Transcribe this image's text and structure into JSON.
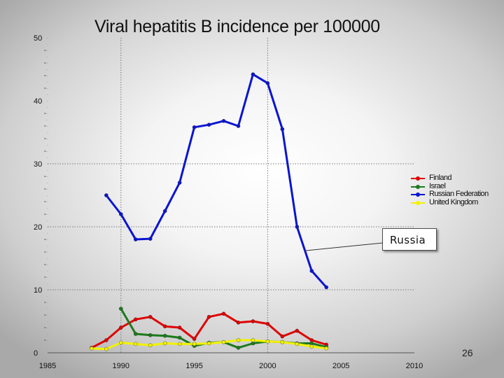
{
  "chart_data": {
    "type": "line",
    "title": "Viral hepatitis B incidence per 100000",
    "xlim": [
      1985,
      2010
    ],
    "ylim": [
      0,
      50
    ],
    "x_ticks": [
      1985,
      1990,
      1995,
      2000,
      2005,
      2010
    ],
    "y_ticks": [
      0,
      10,
      20,
      30,
      40,
      50
    ],
    "grid": {
      "vertical_dashed_at": [
        1990,
        2000
      ],
      "horizontal_dashed_at": [
        10,
        20,
        30
      ]
    },
    "legend_position": "right",
    "series": [
      {
        "name": "Finland",
        "color": "#e00000",
        "x": [
          1988,
          1989,
          1990,
          1991,
          1992,
          1993,
          1994,
          1995,
          1996,
          1997,
          1998,
          1999,
          2000,
          2001,
          2002,
          2003,
          2004
        ],
        "values": [
          0.8,
          2.0,
          4.0,
          5.3,
          5.7,
          4.2,
          4.0,
          2.2,
          5.7,
          6.2,
          4.8,
          5.0,
          4.6,
          2.6,
          3.5,
          2.0,
          1.3
        ]
      },
      {
        "name": "Israel",
        "color": "#1d7a1d",
        "x": [
          1990,
          1991,
          1992,
          1993,
          1994,
          1995,
          1996,
          1997,
          1998,
          1999,
          2000,
          2001,
          2002,
          2003,
          2004
        ],
        "values": [
          7.0,
          3.0,
          2.8,
          2.7,
          2.4,
          1.1,
          1.6,
          1.7,
          0.8,
          1.5,
          1.8,
          1.7,
          1.5,
          1.5,
          0.9
        ]
      },
      {
        "name": "Russian Federation",
        "color": "#0a14d4",
        "x": [
          1989,
          1990,
          1991,
          1992,
          1993,
          1994,
          1995,
          1996,
          1997,
          1998,
          1999,
          2000,
          2001,
          2002,
          2003,
          2004
        ],
        "values": [
          25.0,
          22.0,
          18.0,
          18.1,
          22.5,
          27.0,
          35.8,
          36.2,
          36.8,
          36.0,
          44.2,
          42.8,
          35.5,
          20.0,
          13.0,
          10.4
        ]
      },
      {
        "name": "United Kingdom",
        "color": "#f2f200",
        "x": [
          1988,
          1989,
          1990,
          1991,
          1992,
          1993,
          1994,
          1995,
          1996,
          1997,
          1998,
          1999,
          2000,
          2001,
          2002,
          2003,
          2004
        ],
        "values": [
          0.7,
          0.6,
          1.6,
          1.4,
          1.2,
          1.5,
          1.4,
          1.4,
          1.5,
          1.7,
          2.0,
          2.0,
          1.8,
          1.7,
          1.4,
          1.0,
          0.7
        ]
      }
    ],
    "annotation": {
      "text": "Russia",
      "target_series": "Russian Federation",
      "target_x": 2002.5,
      "target_y": 16.2
    }
  },
  "page_number": "26"
}
